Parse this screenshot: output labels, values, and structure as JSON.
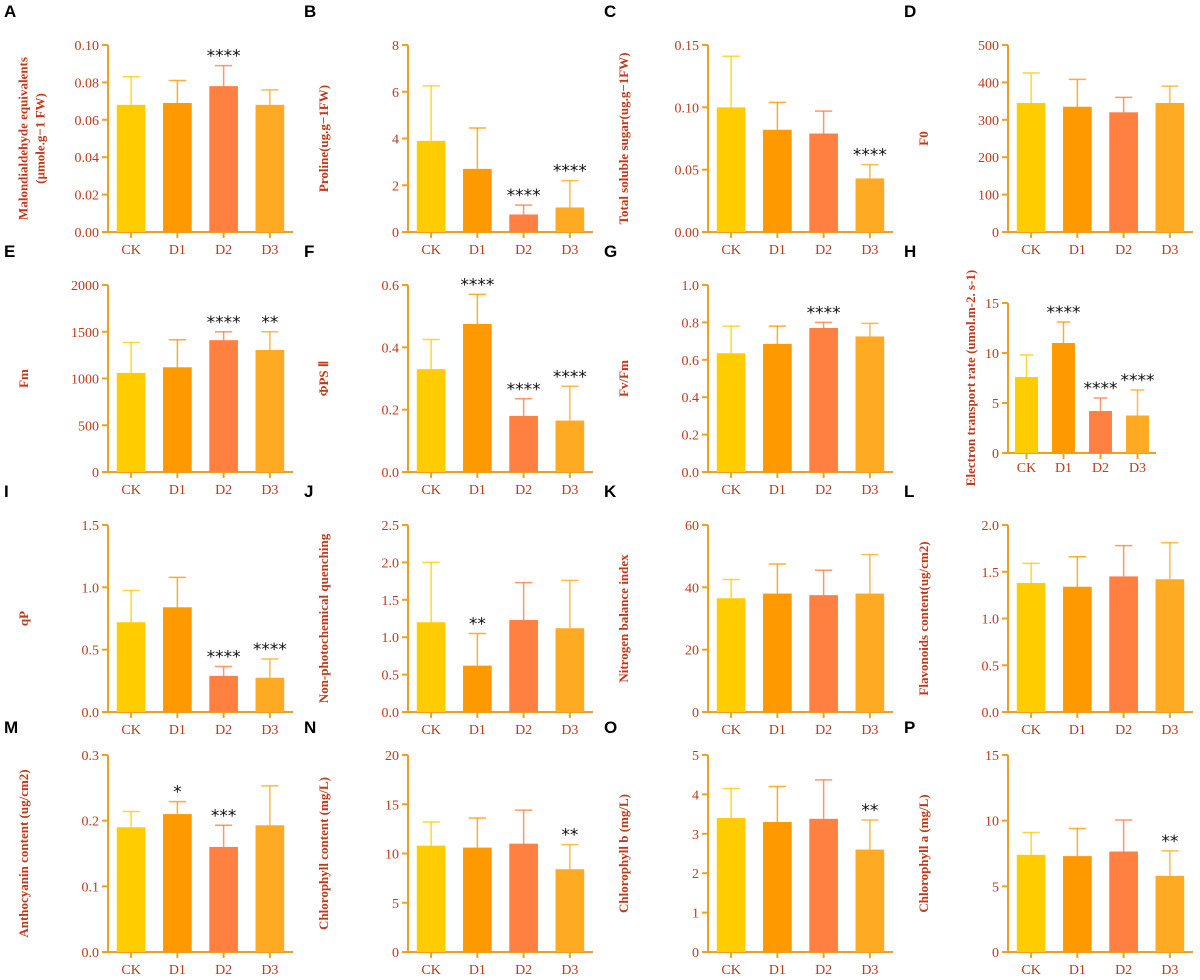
{
  "chart_data": {
    "type": "bar",
    "categories": [
      "CK",
      "D1",
      "D2",
      "D3"
    ],
    "colors": {
      "CK": "#FFCC00",
      "D1": "#FF9900",
      "D2": "#FF8040",
      "D3": "#FFAA22",
      "axis": "#F0A020",
      "text": "#C0391B"
    },
    "error_bars": "mean + SD (upper only)",
    "panels": [
      {
        "letter": "A",
        "ylabel": [
          "Malondialdehyde equivalents",
          "(µmole.g−1 FW)"
        ],
        "ylim": [
          0,
          0.1
        ],
        "ticks": [
          "0.00",
          "0.02",
          "0.04",
          "0.06",
          "0.08",
          "0.10"
        ],
        "values": [
          0.068,
          0.069,
          0.078,
          0.068
        ],
        "errors": [
          0.015,
          0.012,
          0.011,
          0.008
        ],
        "stars": [
          "",
          "",
          "****",
          ""
        ]
      },
      {
        "letter": "B",
        "ylabel": [
          "Proline(ug.g−1FW)"
        ],
        "ylim": [
          0,
          8
        ],
        "ticks": [
          "0",
          "2",
          "4",
          "6",
          "8"
        ],
        "values": [
          3.9,
          2.7,
          0.75,
          1.05
        ],
        "errors": [
          2.35,
          1.75,
          0.4,
          1.15
        ],
        "stars": [
          "",
          "",
          "****",
          "****"
        ]
      },
      {
        "letter": "C",
        "ylabel": [
          "Total soluble sugar(ug.g−1FW)"
        ],
        "ylim": [
          0,
          0.15
        ],
        "ticks": [
          "0.00",
          "0.05",
          "0.10",
          "0.15"
        ],
        "values": [
          0.1,
          0.082,
          0.079,
          0.043
        ],
        "errors": [
          0.041,
          0.022,
          0.018,
          0.011
        ],
        "stars": [
          "",
          "",
          "",
          "****"
        ]
      },
      {
        "letter": "D",
        "ylabel": [
          "F0"
        ],
        "ylim": [
          0,
          500
        ],
        "ticks": [
          "0",
          "100",
          "200",
          "300",
          "400",
          "500"
        ],
        "values": [
          345,
          335,
          320,
          345
        ],
        "errors": [
          80,
          73,
          40,
          45
        ],
        "stars": [
          "",
          "",
          "",
          ""
        ]
      },
      {
        "letter": "E",
        "ylabel": [
          "Fm"
        ],
        "ylim": [
          0,
          2000
        ],
        "ticks": [
          "0",
          "500",
          "1000",
          "1500",
          "2000"
        ],
        "values": [
          1060,
          1120,
          1410,
          1305
        ],
        "errors": [
          325,
          295,
          90,
          195
        ],
        "stars": [
          "",
          "",
          "****",
          "**"
        ]
      },
      {
        "letter": "F",
        "ylabel": [
          "ΦPS Ⅱ"
        ],
        "ylim": [
          0,
          0.6
        ],
        "ticks": [
          "0.0",
          "0.2",
          "0.4",
          "0.6"
        ],
        "values": [
          0.33,
          0.475,
          0.18,
          0.165
        ],
        "errors": [
          0.095,
          0.095,
          0.055,
          0.11
        ],
        "stars": [
          "",
          "****",
          "****",
          "****"
        ]
      },
      {
        "letter": "G",
        "ylabel": [
          "Fv/Fm"
        ],
        "ylim": [
          0,
          1.0
        ],
        "ticks": [
          "0.0",
          "0.2",
          "0.4",
          "0.6",
          "0.8",
          "1.0"
        ],
        "values": [
          0.635,
          0.685,
          0.77,
          0.725
        ],
        "errors": [
          0.145,
          0.095,
          0.03,
          0.07
        ],
        "stars": [
          "",
          "",
          "****",
          ""
        ]
      },
      {
        "letter": "H",
        "ylabel": [
          "Electron transport rate (umol.m-2. s-1)"
        ],
        "ylim": [
          0,
          15
        ],
        "ticks": [
          "0",
          "5",
          "10",
          "15"
        ],
        "values": [
          7.6,
          11,
          4.2,
          3.75
        ],
        "errors": [
          2.2,
          2.1,
          1.3,
          2.55
        ],
        "stars": [
          "",
          "****",
          "****",
          "****"
        ]
      },
      {
        "letter": "I",
        "ylabel": [
          "qP"
        ],
        "ylim": [
          0,
          1.5
        ],
        "ticks": [
          "0.0",
          "0.5",
          "1.0",
          "1.5"
        ],
        "values": [
          0.72,
          0.84,
          0.29,
          0.275
        ],
        "errors": [
          0.255,
          0.24,
          0.075,
          0.15
        ],
        "stars": [
          "",
          "",
          "****",
          "****"
        ]
      },
      {
        "letter": "J",
        "ylabel": [
          "Non-photochemical quenching"
        ],
        "ylim": [
          0,
          2.5
        ],
        "ticks": [
          "0.0",
          "0.5",
          "1.0",
          "1.5",
          "2.0",
          "2.5"
        ],
        "values": [
          1.2,
          0.62,
          1.23,
          1.12
        ],
        "errors": [
          0.8,
          0.43,
          0.5,
          0.64
        ],
        "stars": [
          "",
          "**",
          "",
          ""
        ]
      },
      {
        "letter": "K",
        "ylabel": [
          "Nitrogen balance index"
        ],
        "ylim": [
          0,
          60
        ],
        "ticks": [
          "0",
          "20",
          "40",
          "60"
        ],
        "values": [
          36.5,
          38,
          37.5,
          38
        ],
        "errors": [
          6,
          9.5,
          8,
          12.5
        ],
        "stars": [
          "",
          "",
          "",
          ""
        ]
      },
      {
        "letter": "L",
        "ylabel": [
          "Flavonoids content(ug/cm2)"
        ],
        "ylim": [
          0,
          2.0
        ],
        "ticks": [
          "0.0",
          "0.5",
          "1.0",
          "1.5",
          "2.0"
        ],
        "values": [
          1.38,
          1.34,
          1.45,
          1.42
        ],
        "errors": [
          0.21,
          0.32,
          0.33,
          0.39
        ],
        "stars": [
          "",
          "",
          "",
          ""
        ]
      },
      {
        "letter": "M",
        "ylabel": [
          "Anthocyanin content (ug/cm2)"
        ],
        "ylim": [
          0,
          0.3
        ],
        "ticks": [
          "0.0",
          "0.1",
          "0.2",
          "0.3"
        ],
        "values": [
          0.19,
          0.21,
          0.16,
          0.193
        ],
        "errors": [
          0.024,
          0.019,
          0.033,
          0.06
        ],
        "stars": [
          "",
          "*",
          "***",
          ""
        ]
      },
      {
        "letter": "N",
        "ylabel": [
          "Chlorophyll  content (mg/L)"
        ],
        "ylim": [
          0,
          20
        ],
        "ticks": [
          "0",
          "5",
          "10",
          "15",
          "20"
        ],
        "values": [
          10.8,
          10.6,
          11,
          8.4
        ],
        "errors": [
          2.4,
          3,
          3.4,
          2.5
        ],
        "stars": [
          "",
          "",
          "",
          "**"
        ]
      },
      {
        "letter": "O",
        "ylabel": [
          "Chlorophyll b (mg/L)"
        ],
        "ylim": [
          0,
          5
        ],
        "ticks": [
          "0",
          "1",
          "2",
          "3",
          "4",
          "5"
        ],
        "values": [
          3.4,
          3.3,
          3.38,
          2.6
        ],
        "errors": [
          0.75,
          0.9,
          0.99,
          0.75
        ],
        "stars": [
          "",
          "",
          "",
          "**"
        ]
      },
      {
        "letter": "P",
        "ylabel": [
          "Chlorophyll a (mg/L)"
        ],
        "ylim": [
          0,
          15
        ],
        "ticks": [
          "0",
          "5",
          "10",
          "15"
        ],
        "values": [
          7.4,
          7.3,
          7.65,
          5.8
        ],
        "errors": [
          1.7,
          2.1,
          2.4,
          1.9
        ],
        "stars": [
          "",
          "",
          "",
          "**"
        ]
      }
    ]
  }
}
